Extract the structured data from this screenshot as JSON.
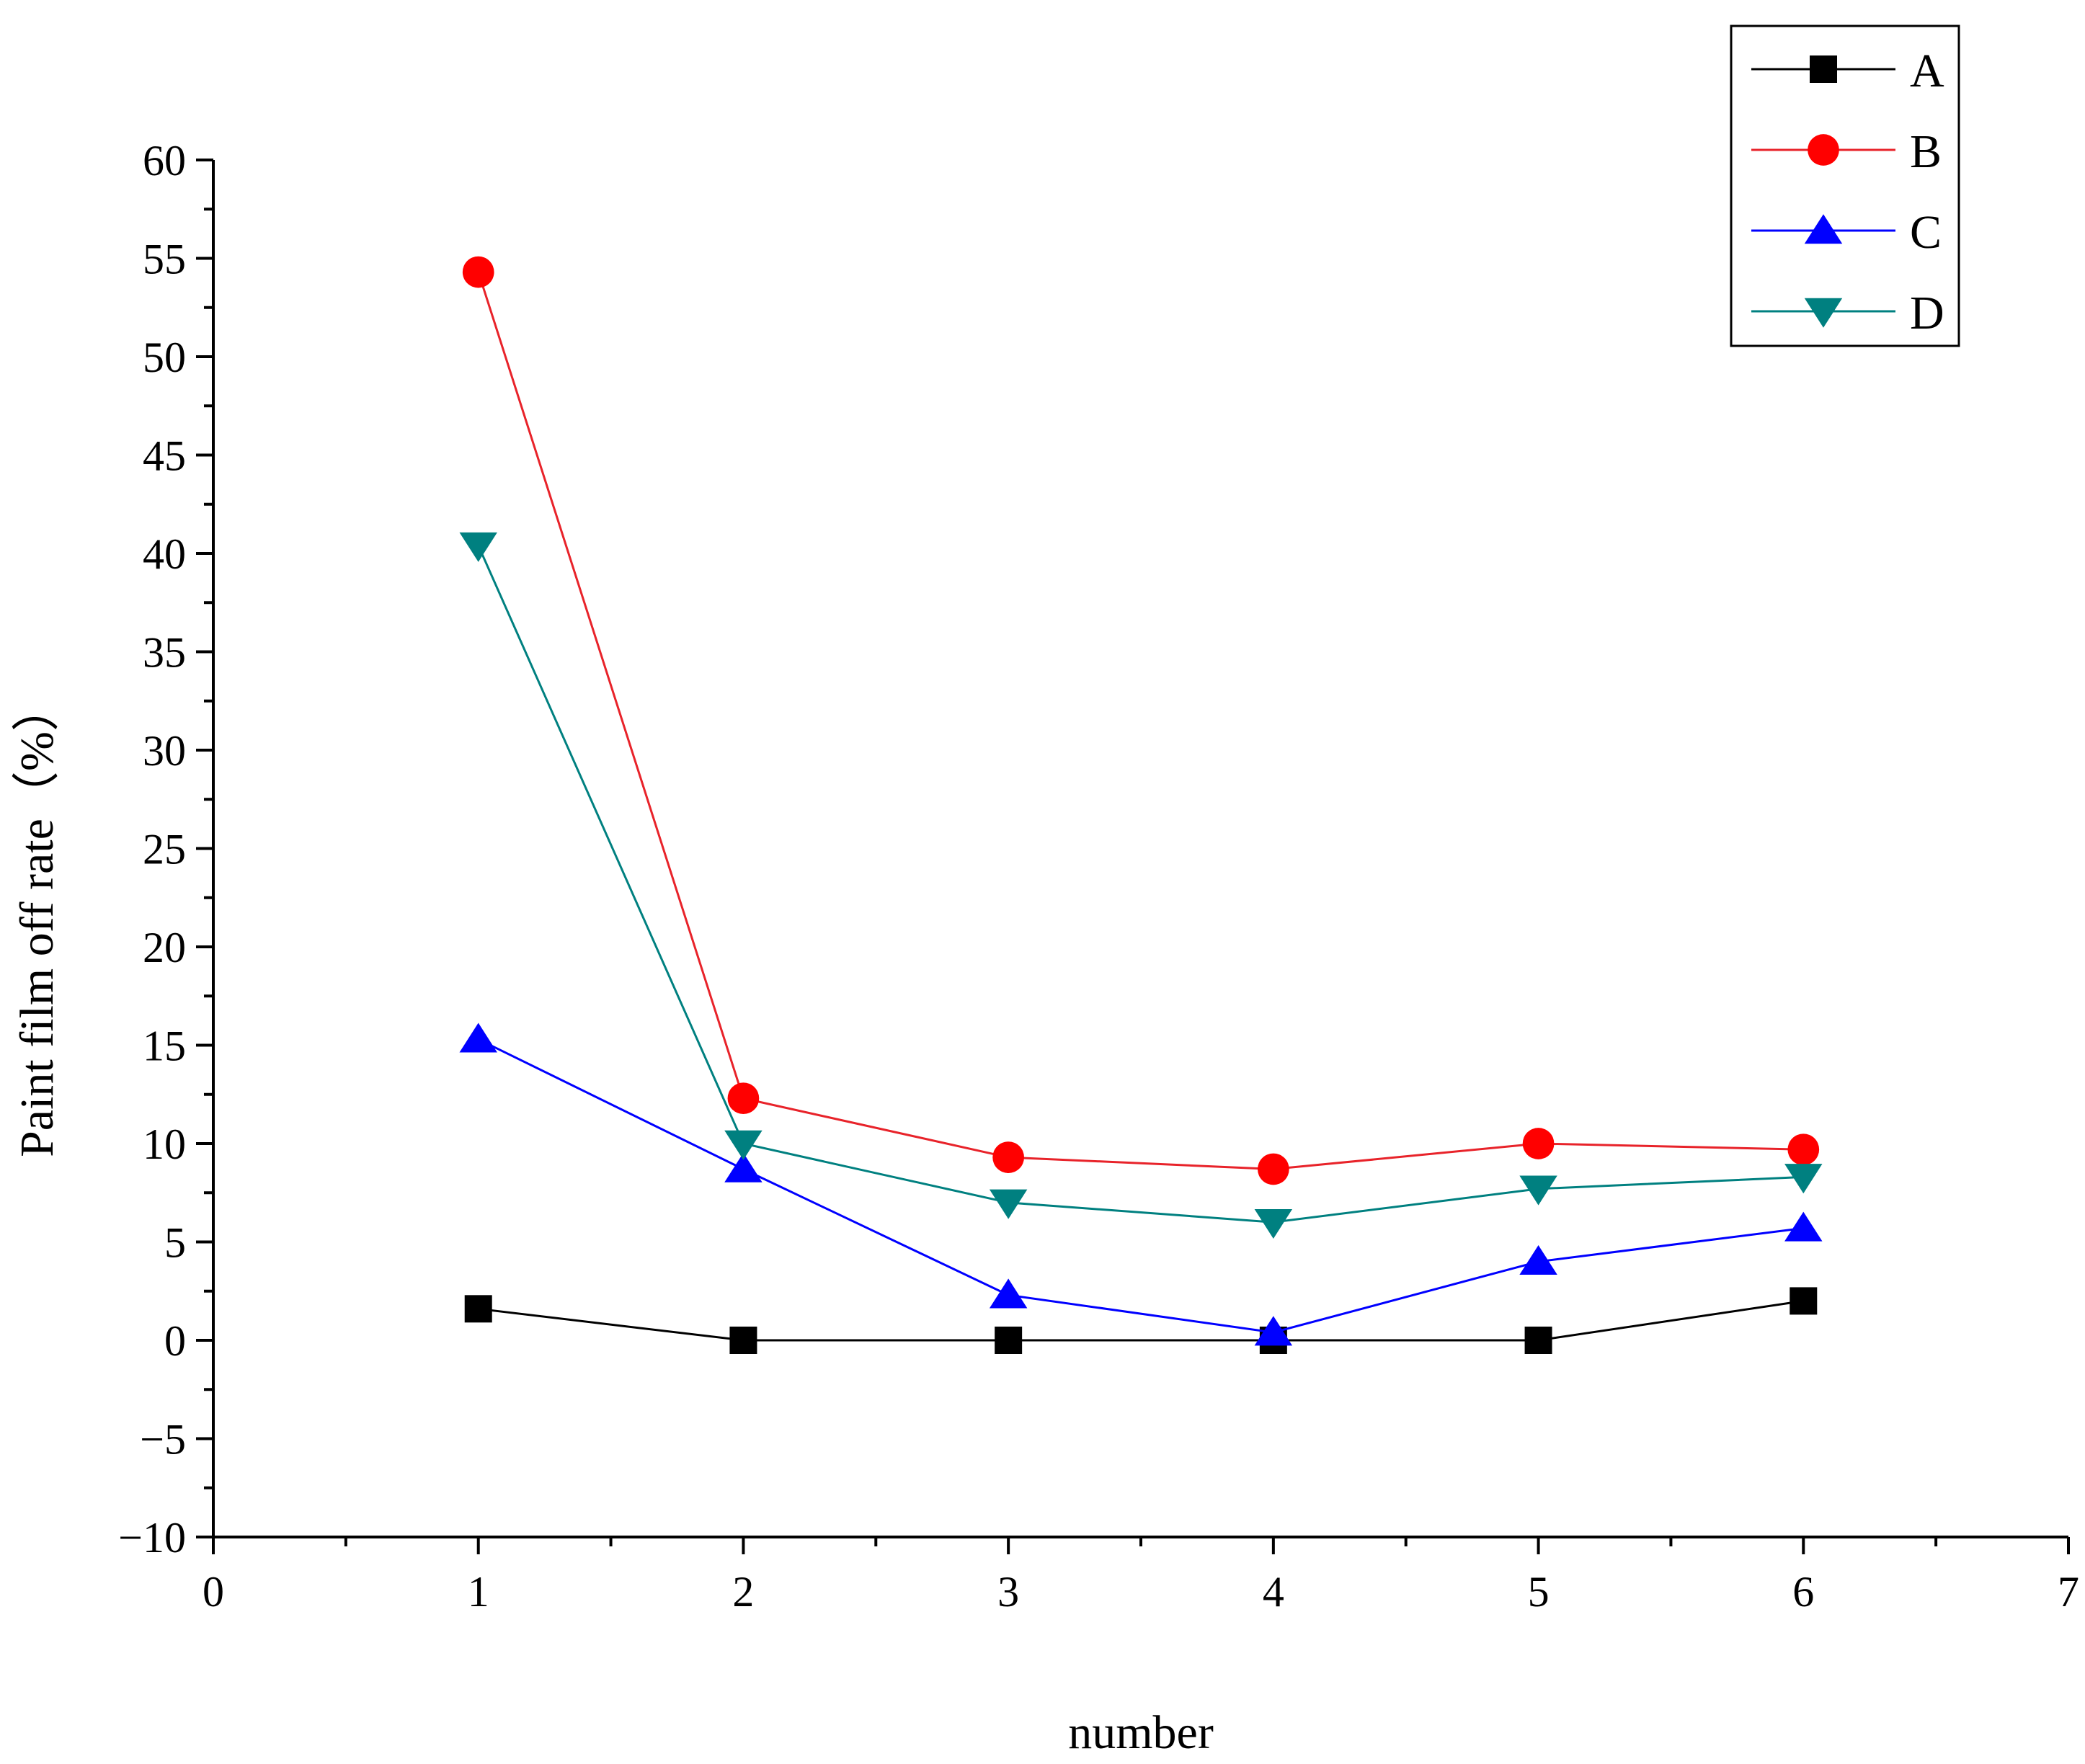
{
  "chart_data": {
    "type": "line",
    "title": "",
    "xlabel": "number",
    "ylabel": "Paint film off rate（%）",
    "xlim": [
      0,
      7
    ],
    "ylim": [
      -10,
      60
    ],
    "x_ticks": [
      "0",
      "1",
      "2",
      "3",
      "4",
      "5",
      "6",
      "7"
    ],
    "y_ticks": [
      "−10",
      "−5",
      "0",
      "5",
      "10",
      "15",
      "20",
      "25",
      "30",
      "35",
      "40",
      "45",
      "50",
      "55",
      "60"
    ],
    "x": [
      1,
      2,
      3,
      4,
      5,
      6
    ],
    "legend_position": "top-right",
    "grid": false,
    "series": [
      {
        "name": "A",
        "marker": "square",
        "line_color": "#000000",
        "marker_color": "#000000",
        "values": [
          1.6,
          0.0,
          0.0,
          0.0,
          0.0,
          2.0
        ]
      },
      {
        "name": "B",
        "marker": "circle",
        "line_color": "#e8232a",
        "marker_color": "#ff0000",
        "values": [
          54.3,
          12.3,
          9.3,
          8.7,
          10.0,
          9.7
        ]
      },
      {
        "name": "C",
        "marker": "triangle-up",
        "line_color": "#0000ff",
        "marker_color": "#0000ff",
        "values": [
          15.3,
          8.7,
          2.3,
          0.4,
          4.0,
          5.7
        ]
      },
      {
        "name": "D",
        "marker": "triangle-down",
        "line_color": "#008080",
        "marker_color": "#008080",
        "values": [
          40.4,
          10.0,
          7.0,
          6.0,
          7.7,
          8.3
        ]
      }
    ]
  }
}
